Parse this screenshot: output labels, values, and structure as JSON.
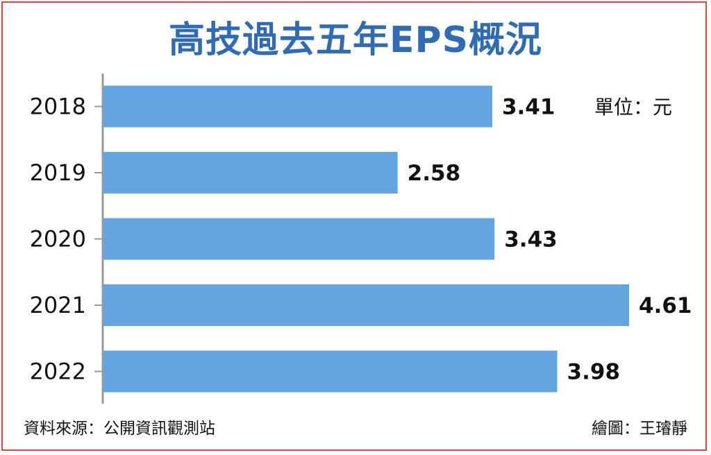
{
  "chart_data": {
    "type": "bar",
    "orientation": "horizontal",
    "title": "高技過去五年EPS概況",
    "unit_label": "單位：元",
    "categories": [
      "2018",
      "2019",
      "2020",
      "2021",
      "2022"
    ],
    "values": [
      3.41,
      2.58,
      3.43,
      4.61,
      3.98
    ],
    "data_labels": [
      "3.41",
      "2.58",
      "3.43",
      "4.61",
      "3.98"
    ],
    "xlim": [
      0,
      4.61
    ],
    "grid": false,
    "legend": "none"
  },
  "footer": {
    "source": "資料來源：公開資訊觀測站",
    "credit": "繪圖：王璿靜"
  },
  "colors": {
    "bar": "#62a5e0",
    "title": "#2f6cb5",
    "frame": "#e0453f",
    "axis": "#999999"
  }
}
